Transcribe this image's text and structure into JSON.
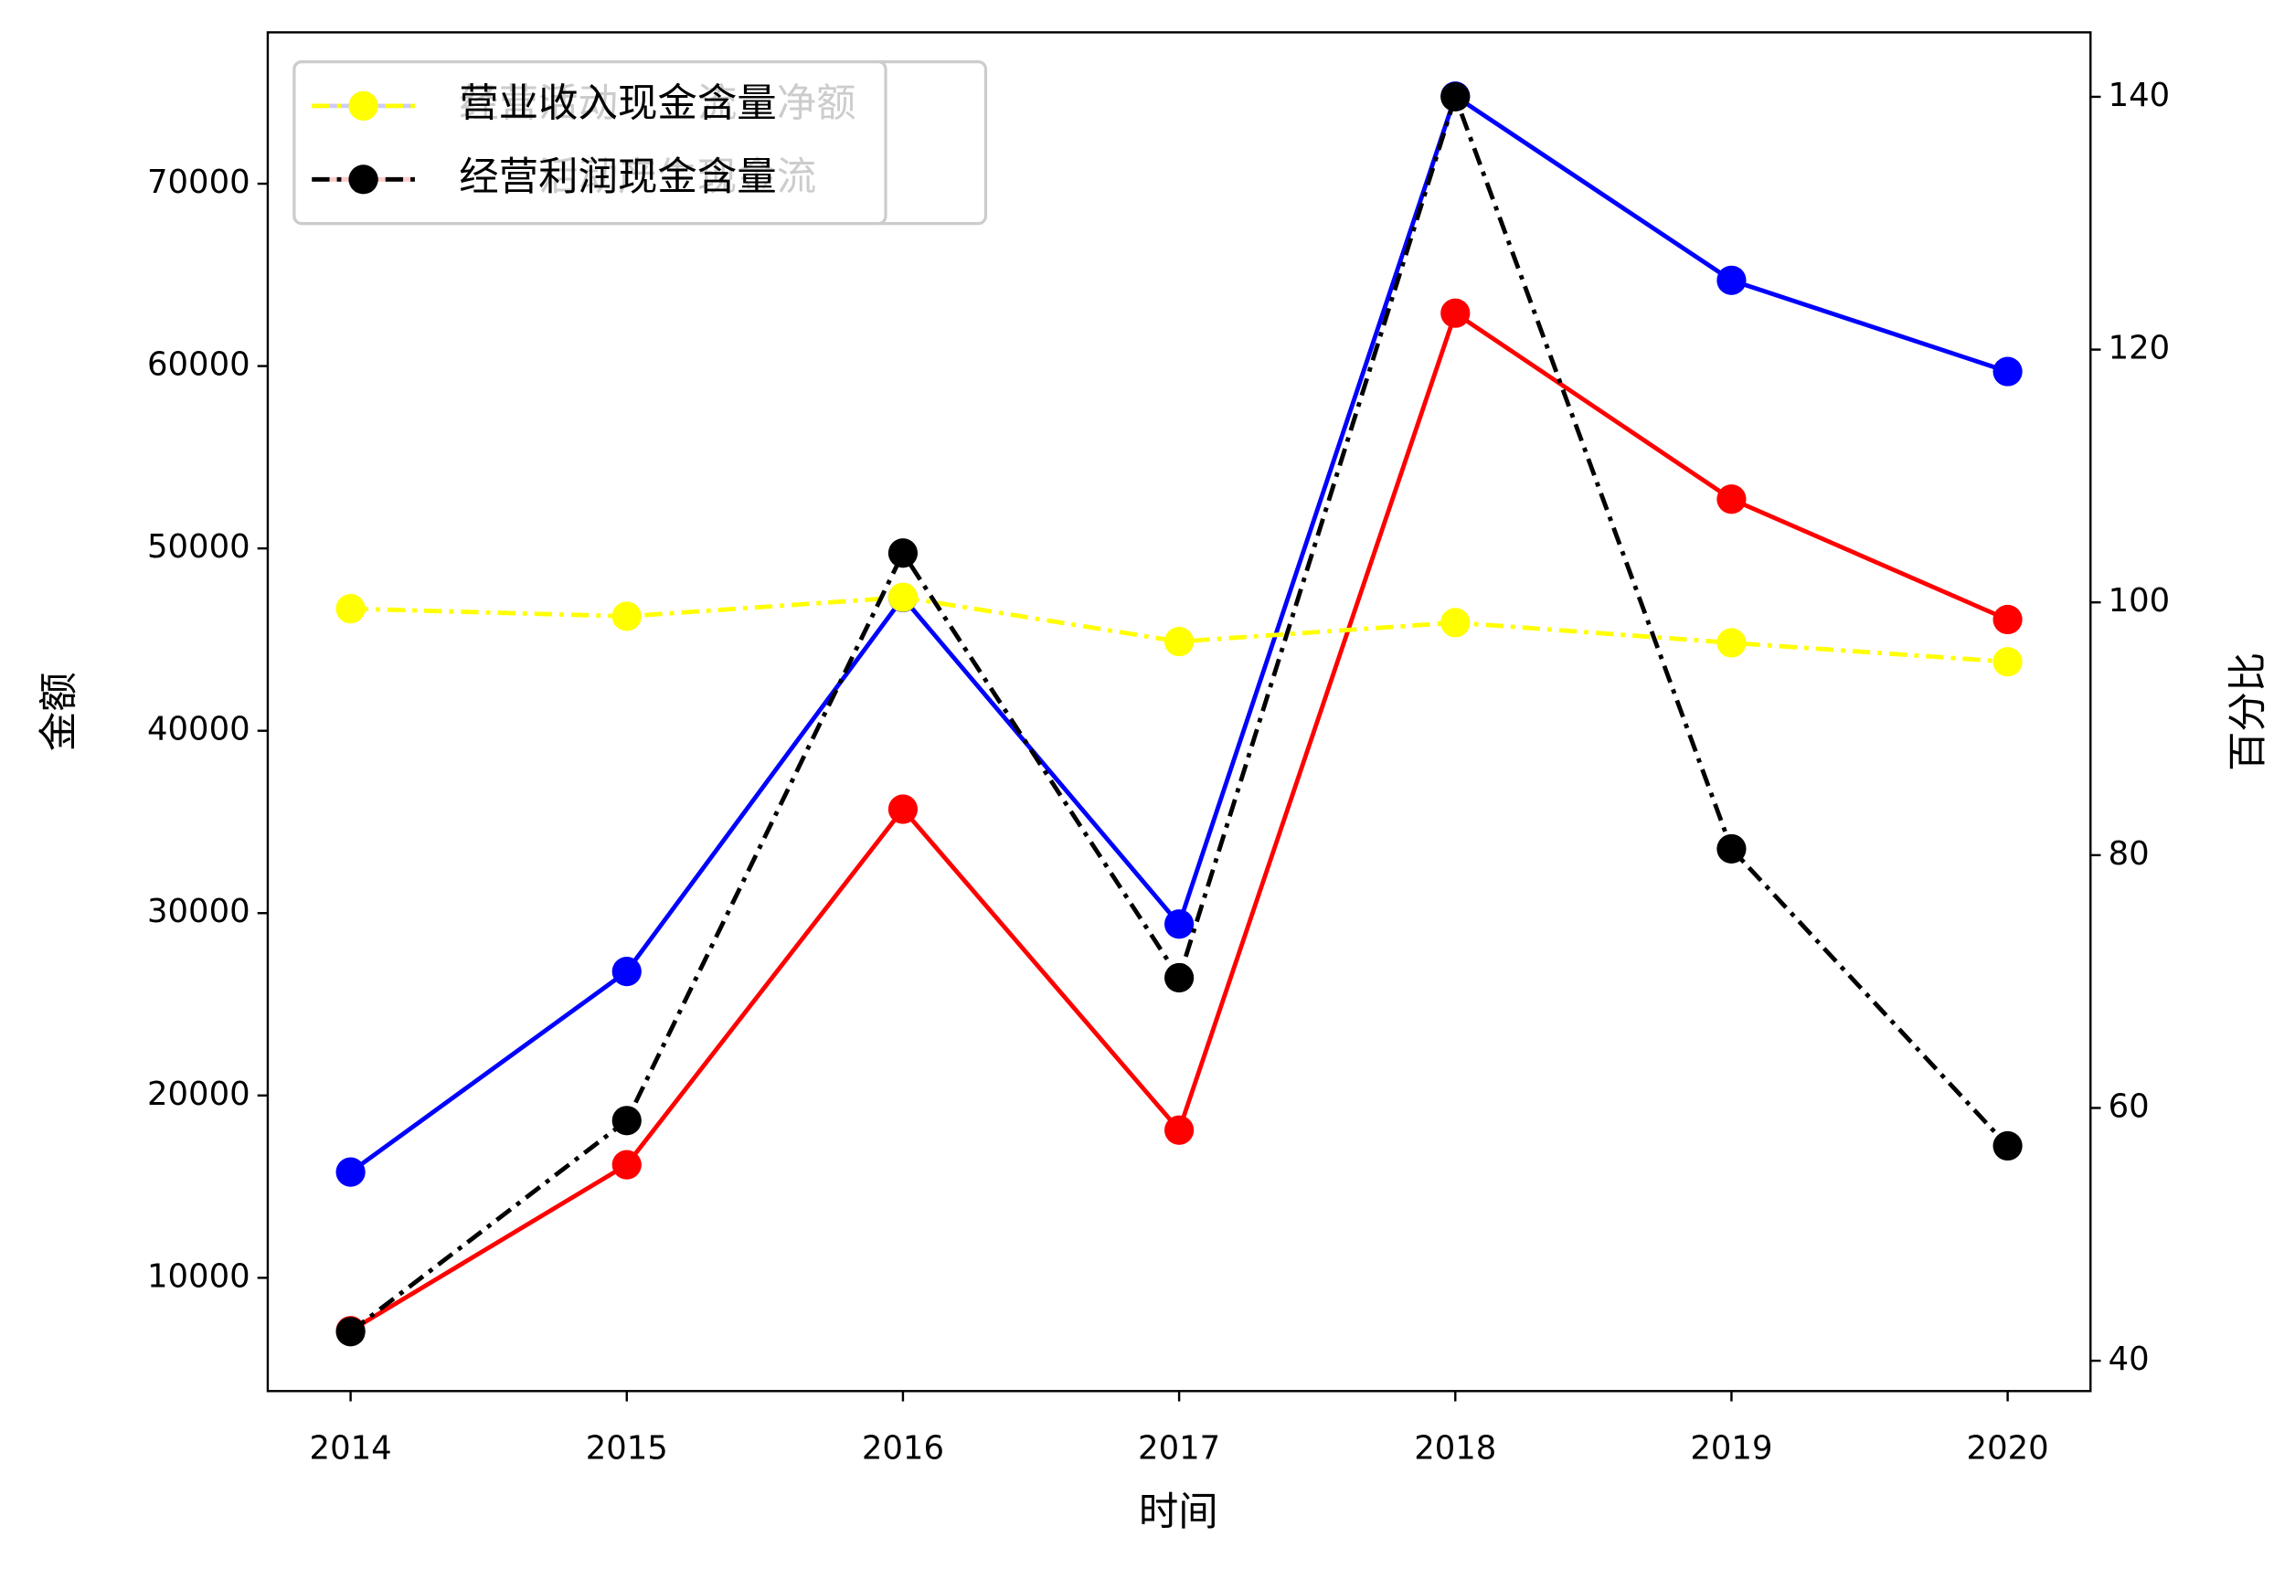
{
  "chart_data": {
    "type": "line",
    "x_label": "时间",
    "y_label": "金额",
    "y2_label": "百分比",
    "x": [
      2014,
      2015,
      2016,
      2017,
      2018,
      2019,
      2020
    ],
    "xlim": [
      2013.7,
      2020.3
    ],
    "xticks": [
      2014,
      2015,
      2016,
      2017,
      2018,
      2019,
      2020
    ],
    "ylim": [
      3790,
      78300
    ],
    "yticks": [
      10000,
      20000,
      30000,
      40000,
      50000,
      60000,
      70000
    ],
    "y2lim": [
      37.6,
      145.1
    ],
    "y2ticks": [
      40,
      60,
      80,
      100,
      120,
      140
    ],
    "series": [
      {
        "name": "经营活动现金流量净额",
        "color": "#0000ff",
        "values": [
          15800,
          26800,
          47300,
          29400,
          74800,
          64700,
          59700
        ]
      },
      {
        "name": "经营活动产生现金流",
        "color": "#ff0000",
        "values": [
          7100,
          16200,
          35700,
          18100,
          62900,
          52700,
          46100
        ]
      },
      {
        "name": "营业收入现金含量",
        "color": "#ffff00",
        "axis": "y2",
        "values": [
          99.5,
          98.9,
          100.4,
          96.9,
          98.4,
          96.8,
          95.3
        ]
      },
      {
        "name": "经营利润现金含量",
        "color": "#000000",
        "axis": "y2",
        "values": [
          42.3,
          59.0,
          103.9,
          70.3,
          140.0,
          80.5,
          57.0
        ]
      }
    ]
  }
}
